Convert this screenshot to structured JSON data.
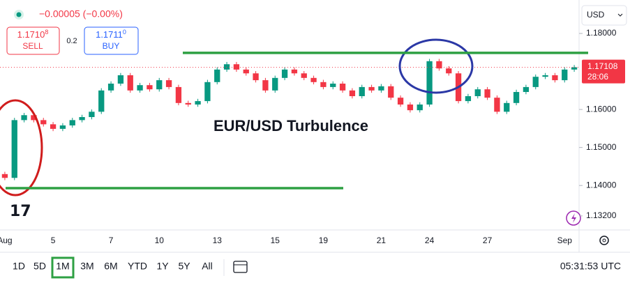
{
  "header": {
    "change": "−0.00005 (−0.00%)",
    "sell": {
      "price_main": "1.1710",
      "price_pip": "8",
      "label": "SELL"
    },
    "spread": "0.2",
    "buy": {
      "price_main": "1.1711",
      "price_pip": "0",
      "label": "BUY"
    },
    "currency": "USD"
  },
  "chart_data": {
    "type": "candlestick",
    "annotation": "EUR/USD Turbulence",
    "up_color": "#089981",
    "down_color": "#f23645",
    "categories": [
      "Aug",
      null,
      null,
      null,
      null,
      "5",
      null,
      null,
      null,
      null,
      null,
      "7",
      null,
      null,
      null,
      null,
      "10",
      null,
      null,
      null,
      null,
      null,
      "13",
      null,
      null,
      null,
      null,
      null,
      "15",
      null,
      null,
      null,
      null,
      "19",
      null,
      null,
      null,
      null,
      null,
      "21",
      null,
      null,
      null,
      null,
      "24",
      null,
      null,
      null,
      null,
      null,
      "27",
      null,
      null,
      null,
      null,
      null,
      null,
      null,
      "Sep",
      null
    ],
    "open": [
      1.143,
      1.142,
      1.1572,
      1.1585,
      1.1572,
      1.1561,
      1.1549,
      1.1558,
      1.1572,
      1.158,
      1.1594,
      1.165,
      1.1668,
      1.169,
      1.165,
      1.1664,
      1.1653,
      1.1677,
      1.1659,
      1.1617,
      1.1613,
      1.1622,
      1.1672,
      1.1705,
      1.1719,
      1.1705,
      1.1695,
      1.1677,
      1.165,
      1.1683,
      1.1705,
      1.1695,
      1.1683,
      1.1672,
      1.1659,
      1.1668,
      1.165,
      1.1635,
      1.1659,
      1.165,
      1.1661,
      1.1631,
      1.1613,
      1.1598,
      1.1613,
      1.1727,
      1.1708,
      1.1695,
      1.1622,
      1.1635,
      1.1653,
      1.1631,
      1.1594,
      1.1617,
      1.1646,
      1.1659,
      1.1686,
      1.169,
      1.1677,
      1.1705
    ],
    "high": [
      1.1436,
      1.1578,
      1.1591,
      1.1591,
      1.1578,
      1.1567,
      1.1564,
      1.1578,
      1.1586,
      1.16,
      1.1656,
      1.1674,
      1.1696,
      1.1696,
      1.167,
      1.167,
      1.1683,
      1.1683,
      1.1665,
      1.1623,
      1.1628,
      1.1678,
      1.1711,
      1.1725,
      1.1725,
      1.1711,
      1.1701,
      1.1683,
      1.1689,
      1.1711,
      1.1711,
      1.1701,
      1.1689,
      1.1678,
      1.1674,
      1.1674,
      1.1656,
      1.1665,
      1.1665,
      1.1667,
      1.1667,
      1.1637,
      1.1619,
      1.1619,
      1.1733,
      1.1733,
      1.1714,
      1.1701,
      1.1641,
      1.1659,
      1.1659,
      1.1637,
      1.1623,
      1.1652,
      1.1665,
      1.1692,
      1.1696,
      1.1696,
      1.1711,
      1.1717
    ],
    "low": [
      1.1414,
      1.1414,
      1.1566,
      1.1566,
      1.1555,
      1.1543,
      1.1543,
      1.1552,
      1.1566,
      1.1574,
      1.1588,
      1.1644,
      1.1662,
      1.1644,
      1.1644,
      1.1647,
      1.1647,
      1.1653,
      1.1611,
      1.1607,
      1.1607,
      1.1616,
      1.1666,
      1.1699,
      1.1699,
      1.1689,
      1.1671,
      1.1644,
      1.1644,
      1.1677,
      1.1689,
      1.1677,
      1.1666,
      1.1653,
      1.1653,
      1.1644,
      1.1629,
      1.1629,
      1.1644,
      1.1644,
      1.1625,
      1.1607,
      1.1592,
      1.1592,
      1.1607,
      1.1702,
      1.1689,
      1.1616,
      1.1616,
      1.1629,
      1.1625,
      1.1588,
      1.1588,
      1.1611,
      1.164,
      1.1653,
      1.168,
      1.1671,
      1.1671,
      1.1699
    ],
    "close": [
      1.142,
      1.1572,
      1.1585,
      1.1572,
      1.1561,
      1.1549,
      1.1558,
      1.1572,
      1.158,
      1.1594,
      1.165,
      1.1668,
      1.169,
      1.165,
      1.1664,
      1.1653,
      1.1677,
      1.1659,
      1.1617,
      1.1613,
      1.1622,
      1.1672,
      1.1705,
      1.1719,
      1.1705,
      1.1695,
      1.1677,
      1.165,
      1.1683,
      1.1705,
      1.1695,
      1.1683,
      1.1672,
      1.1659,
      1.1668,
      1.165,
      1.1635,
      1.1659,
      1.165,
      1.1661,
      1.1631,
      1.1613,
      1.1598,
      1.1613,
      1.1727,
      1.1708,
      1.1695,
      1.1622,
      1.1635,
      1.1653,
      1.1631,
      1.1594,
      1.1617,
      1.1646,
      1.1659,
      1.1686,
      1.169,
      1.1677,
      1.1705,
      1.1711
    ],
    "ylim": [
      1.1283,
      1.1888
    ],
    "yticks": [
      {
        "value": 1.18,
        "label": "1.18000"
      },
      {
        "value": 1.16,
        "label": "1.16000"
      },
      {
        "value": 1.15,
        "label": "1.15000"
      },
      {
        "value": 1.14,
        "label": "1.14000"
      },
      {
        "value": 1.132,
        "label": "1.13200"
      }
    ],
    "current_price": {
      "value": 1.17108,
      "label": "1.17108"
    },
    "countdown": "28:06",
    "levels": [
      {
        "value": 1.1749,
        "color": "#2ea043"
      },
      {
        "value": 1.1393,
        "color": "#2ea043"
      }
    ]
  },
  "toolbar": {
    "periods": [
      "1D",
      "5D",
      "1M",
      "3M",
      "6M",
      "YTD",
      "1Y",
      "5Y",
      "All"
    ],
    "selected": "1M",
    "clock": "05:31:53 UTC"
  }
}
